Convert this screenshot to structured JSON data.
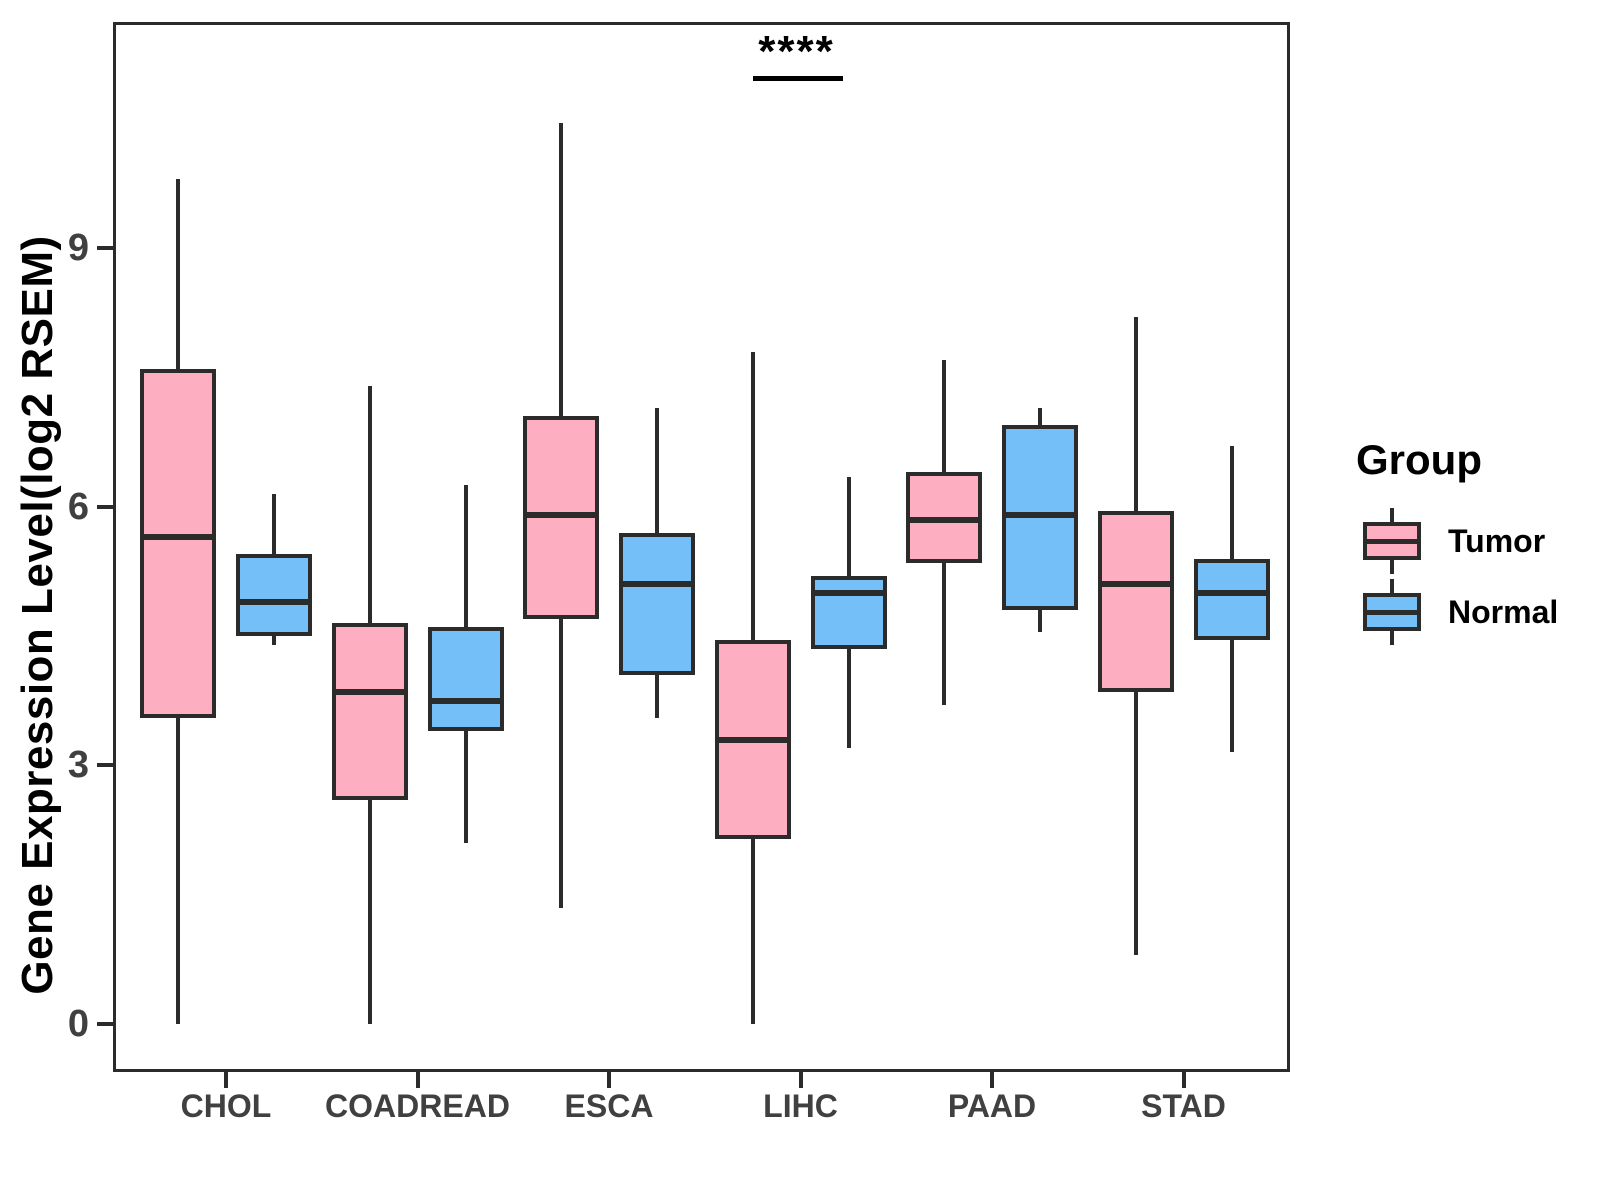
{
  "chart_data": {
    "type": "boxplot",
    "title": "",
    "xlabel": "",
    "ylabel": "Gene Expression Level(log2 RSEM)",
    "categories": [
      "CHOL",
      "COADREAD",
      "ESCA",
      "LIHC",
      "PAAD",
      "STAD"
    ],
    "yticks": [
      0,
      3,
      6,
      9
    ],
    "ylim": [
      -0.6,
      11.6
    ],
    "grid": false,
    "legend": {
      "title": "Group",
      "position": "right"
    },
    "series": [
      {
        "name": "Tumor",
        "color": "#FDAFC1",
        "stats": [
          {
            "min": 0.0,
            "q1": 3.55,
            "median": 5.65,
            "q3": 7.6,
            "max": 9.8
          },
          {
            "min": 0.0,
            "q1": 2.6,
            "median": 3.85,
            "q3": 4.65,
            "max": 7.4
          },
          {
            "min": 1.35,
            "q1": 4.7,
            "median": 5.9,
            "q3": 7.05,
            "max": 10.45
          },
          {
            "min": 0.0,
            "q1": 2.15,
            "median": 3.3,
            "q3": 4.45,
            "max": 7.8
          },
          {
            "min": 3.7,
            "q1": 5.35,
            "median": 5.85,
            "q3": 6.4,
            "max": 7.7
          },
          {
            "min": 0.8,
            "q1": 3.85,
            "median": 5.1,
            "q3": 5.95,
            "max": 8.2
          }
        ]
      },
      {
        "name": "Normal",
        "color": "#74BFF7",
        "stats": [
          {
            "min": 4.4,
            "q1": 4.5,
            "median": 4.9,
            "q3": 5.45,
            "max": 6.15
          },
          {
            "min": 2.1,
            "q1": 3.4,
            "median": 3.75,
            "q3": 4.6,
            "max": 6.25
          },
          {
            "min": 3.55,
            "q1": 4.05,
            "median": 5.1,
            "q3": 5.7,
            "max": 7.15
          },
          {
            "min": 3.2,
            "q1": 4.35,
            "median": 5.0,
            "q3": 5.2,
            "max": 6.35
          },
          {
            "min": 4.55,
            "q1": 4.8,
            "median": 5.9,
            "q3": 6.95,
            "max": 7.15
          },
          {
            "min": 3.15,
            "q1": 4.45,
            "median": 5.0,
            "q3": 5.4,
            "max": 6.7
          }
        ]
      }
    ],
    "significance": {
      "label": "****",
      "category": "LIHC",
      "compares": [
        "Tumor",
        "Normal"
      ],
      "line_y": 11.0
    },
    "colors": {
      "box_border": "#2b2b2b",
      "axis_text": "#404040",
      "panel_border": "#2b2b2b",
      "annotation": "#000000"
    }
  }
}
